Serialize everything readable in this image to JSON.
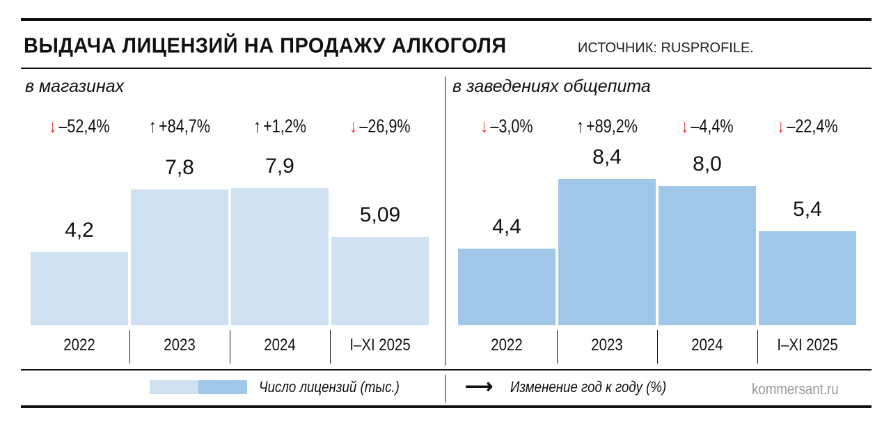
{
  "title": "ВЫДАЧА ЛИЦЕНЗИЙ НА ПРОДАЖУ АЛКОГОЛЯ",
  "source": "ИСТОЧНИК: RUSPROFILE.",
  "watermark": "kommersant.ru",
  "colors": {
    "stores": "#cfe1f0",
    "catering": "#a0c6e8",
    "down": "#e8302a",
    "up": "#111111"
  },
  "legend": {
    "bars": "Число лицензий (тыс.)",
    "arrow": "Изменение год к году (%)"
  },
  "chart_data": [
    {
      "type": "bar",
      "title": "в магазинах",
      "categories": [
        "2022",
        "2023",
        "2024",
        "I–XI 2025"
      ],
      "values": [
        4.2,
        7.8,
        7.9,
        5.09
      ],
      "value_labels": [
        "4,2",
        "7,8",
        "7,9",
        "5,09"
      ],
      "changes": [
        {
          "dir": "down",
          "label": "–52,4%"
        },
        {
          "dir": "up",
          "label": "+84,7%"
        },
        {
          "dir": "up",
          "label": "+1,2%"
        },
        {
          "dir": "down",
          "label": "–26,9%"
        }
      ],
      "color": "#cfe1f0"
    },
    {
      "type": "bar",
      "title": "в заведениях общепита",
      "categories": [
        "2022",
        "2023",
        "2024",
        "I–XI 2025"
      ],
      "values": [
        4.4,
        8.4,
        8.0,
        5.4
      ],
      "value_labels": [
        "4,4",
        "8,4",
        "8,0",
        "5,4"
      ],
      "changes": [
        {
          "dir": "down",
          "label": "–3,0%"
        },
        {
          "dir": "up",
          "label": "+89,2%"
        },
        {
          "dir": "down",
          "label": "–4,4%"
        },
        {
          "dir": "down",
          "label": "–22,4%"
        }
      ],
      "color": "#a0c6e8"
    }
  ]
}
